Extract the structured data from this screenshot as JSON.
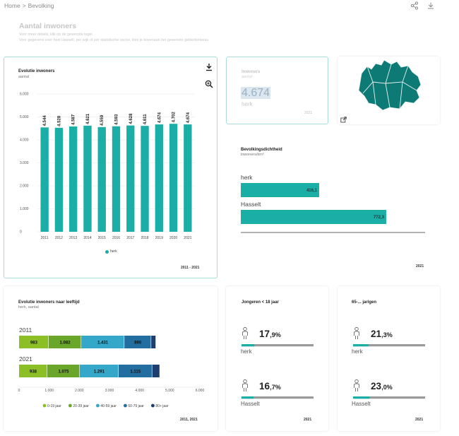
{
  "breadcrumb": {
    "home": "Home",
    "separator": ">",
    "current": "Bevolking"
  },
  "toolbar": {
    "share_icon": "share-icon",
    "download_icon": "download-icon"
  },
  "page": {
    "title": "Aantal inwoners",
    "subtitle1": "Voor meer details, klik op de gewenste tegel",
    "subtitle2": "Voor gegevens voor heel Hasselt, per wijk of per statistische sector, kies je bovenaan het gewenste gebiedsniveau"
  },
  "evolutie": {
    "title": "Evolutie inwoners",
    "subtitle": "aantal",
    "years_label": "2011 - 2021",
    "chart_data": {
      "type": "bar",
      "categories": [
        "2011",
        "2012",
        "2013",
        "2014",
        "2015",
        "2016",
        "2017",
        "2018",
        "2019",
        "2020",
        "2021"
      ],
      "values": [
        4544,
        4528,
        4587,
        4621,
        4559,
        4593,
        4628,
        4611,
        4674,
        4702,
        4674
      ],
      "value_labels": [
        "4.544",
        "4.528",
        "4.587",
        "4.621",
        "4.559",
        "4.593",
        "4.628",
        "4.611",
        "4.674",
        "4.702",
        "4.674"
      ],
      "y_ticks": [
        0,
        1000,
        2000,
        3000,
        4000,
        5000,
        6000
      ],
      "y_tick_labels": [
        "0",
        "1.000",
        "2.000",
        "3.000",
        "4.000",
        "5.000",
        "6.000"
      ],
      "ylim": [
        0,
        6000
      ],
      "legend": [
        "herk"
      ],
      "legend_position": "bottom",
      "grid": true,
      "color": "#1aaea6"
    }
  },
  "inwoners_tile": {
    "title": "Inwoners",
    "subtitle": "aantal",
    "value": "4.674",
    "area": "herk",
    "year": "2021"
  },
  "map_tile": {
    "external_icon": "external-link-icon"
  },
  "dichtheid": {
    "title": "Bevolkingsdichtheid",
    "subtitle": "inwoners/km²",
    "year": "2021",
    "chart_data": {
      "type": "bar",
      "orientation": "horizontal",
      "categories": [
        "herk",
        "Hasselt"
      ],
      "values": [
        416.1,
        772.3
      ],
      "value_labels": [
        "416,1",
        "772,3"
      ],
      "color": "#1aaea6"
    }
  },
  "leeftijd": {
    "title": "Evolutie inwoners naar leeftijd",
    "subtitle": "herk, aantal",
    "years_label": "2011, 2021",
    "chart_data": {
      "type": "bar",
      "orientation": "horizontal",
      "stacked": true,
      "categories": [
        "2011",
        "2021"
      ],
      "series": [
        {
          "name": "0-19 jaar",
          "values": [
            983,
            938
          ],
          "labels": [
            "983",
            "938"
          ],
          "color": "#8cbf26"
        },
        {
          "name": "20-39 jaar",
          "values": [
            1082,
            1075
          ],
          "labels": [
            "1.082",
            "1.075"
          ],
          "color": "#6aa629"
        },
        {
          "name": "40-59 jaar",
          "values": [
            1431,
            1291
          ],
          "labels": [
            "1.431",
            "1.291"
          ],
          "color": "#35a7c8"
        },
        {
          "name": "60-79 jaar",
          "values": [
            890,
            1115
          ],
          "labels": [
            "890",
            "1.115"
          ],
          "color": "#226ea0"
        },
        {
          "name": "80+ jaar",
          "values": [
            158,
            255
          ],
          "labels": [
            "",
            ""
          ],
          "color": "#1c3f70"
        }
      ],
      "x_ticks": [
        0,
        1000,
        2000,
        3000,
        4000,
        5000,
        6000
      ],
      "x_tick_labels": [
        "0",
        "1.000",
        "2.000",
        "3.000",
        "4.000",
        "5.000",
        "6.000"
      ],
      "xlim": [
        0,
        6000
      ],
      "legend_position": "bottom"
    }
  },
  "jongeren": {
    "title": "Jongeren < 18 jaar",
    "year": "2021",
    "rows": [
      {
        "int": "17",
        "dec": ",9%",
        "area": "herk",
        "pct": 17.9
      },
      {
        "int": "16",
        "dec": ",7%",
        "area": "Hasselt",
        "pct": 16.7
      }
    ]
  },
  "ouderen": {
    "title": "65-... jarigen",
    "year": "2021",
    "rows": [
      {
        "int": "21",
        "dec": ",3%",
        "area": "herk",
        "pct": 21.3
      },
      {
        "int": "23",
        "dec": ",0%",
        "area": "Hasselt",
        "pct": 23.0
      }
    ]
  },
  "colors": {
    "teal": "#1aaea6",
    "bar_track": "#9a9a9a",
    "dark_teal": "#0d7a75"
  }
}
